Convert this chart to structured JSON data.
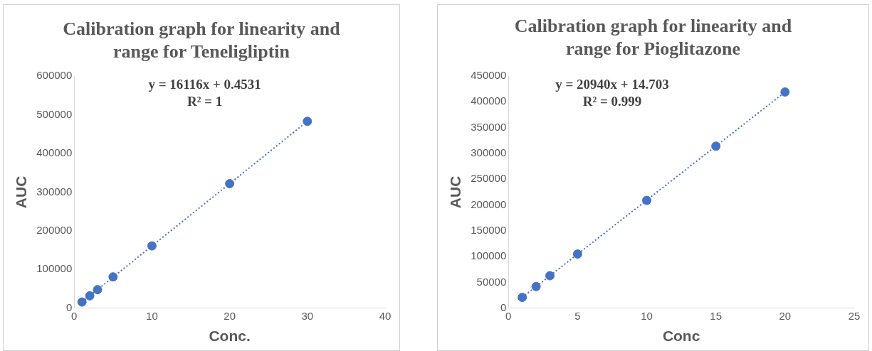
{
  "chart_data": [
    {
      "type": "scatter",
      "title": "Calibration graph for linearity and range for Teneligliptin",
      "xlabel": "Conc.",
      "ylabel": "AUC",
      "xlim": [
        0,
        40
      ],
      "xticks": [
        0,
        10,
        20,
        30,
        40
      ],
      "ylim": [
        0,
        600000
      ],
      "yticks": [
        0,
        100000,
        200000,
        300000,
        400000,
        500000,
        600000
      ],
      "legend": false,
      "marker": "circle",
      "annotations": [
        "y = 16116x + 0.4531",
        "R² = 1"
      ],
      "series": [
        {
          "color": "#4472c4",
          "x": [
            1,
            2,
            3,
            5,
            10,
            20,
            30
          ],
          "values": [
            16000,
            32000,
            48000,
            81000,
            161000,
            322000,
            483000
          ]
        },
        {
          "type": "line",
          "color": "#4472c4",
          "line_style": "dotted",
          "marker": "none",
          "x": [
            1,
            30
          ],
          "values": [
            16000,
            483000
          ]
        }
      ]
    },
    {
      "type": "scatter",
      "title": "Calibration graph for linearity and range for Pioglitazone",
      "xlabel": "Conc",
      "ylabel": "AUC",
      "xlim": [
        0,
        25
      ],
      "xticks": [
        0,
        5,
        10,
        15,
        20,
        25
      ],
      "ylim": [
        0,
        450000
      ],
      "yticks": [
        0,
        50000,
        100000,
        150000,
        200000,
        250000,
        300000,
        350000,
        400000,
        450000
      ],
      "legend": false,
      "marker": "circle",
      "annotations": [
        "y = 20940x + 14.703",
        "R² = 0.999"
      ],
      "series": [
        {
          "color": "#4472c4",
          "x": [
            1,
            2,
            3,
            5,
            10,
            15,
            20
          ],
          "values": [
            21000,
            42000,
            63000,
            105000,
            209000,
            314000,
            419000
          ]
        },
        {
          "type": "line",
          "color": "#4472c4",
          "line_style": "dotted",
          "marker": "none",
          "x": [
            1,
            20
          ],
          "values": [
            21000,
            419000
          ]
        }
      ]
    }
  ]
}
